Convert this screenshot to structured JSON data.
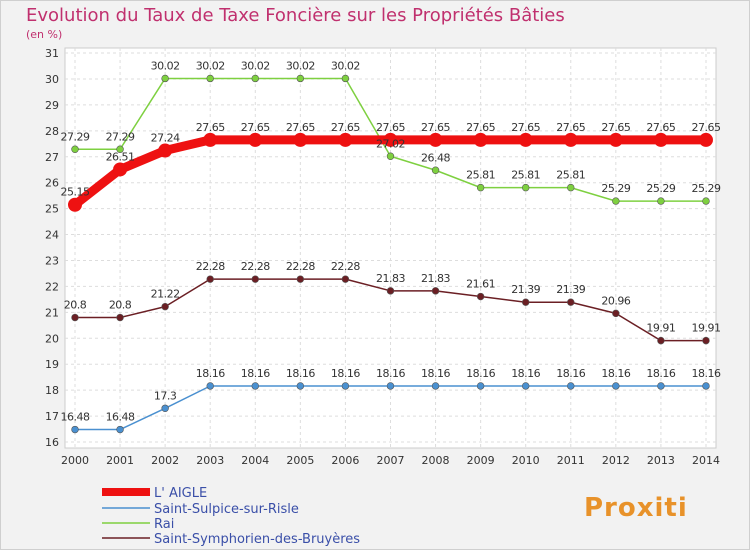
{
  "title": "Evolution du Taux de Taxe Foncière sur les Propriétés Bâties",
  "unit_label": "(en %)",
  "logo_text": "Proxiti",
  "chart_data": {
    "type": "line",
    "title": "Evolution du Taux de Taxe Foncière sur les Propriétés Bâties",
    "ylabel": "(en %)",
    "xlabel": "",
    "ylim": [
      16,
      31
    ],
    "yticks": [
      16,
      17,
      18,
      19,
      20,
      21,
      22,
      23,
      24,
      25,
      26,
      27,
      28,
      29,
      30,
      31
    ],
    "grid": true,
    "legend_position": "bottom-left",
    "x": [
      "2000",
      "2001",
      "2002",
      "2003",
      "2004",
      "2005",
      "2006",
      "2007",
      "2008",
      "2009",
      "2010",
      "2011",
      "2012",
      "2013",
      "2014"
    ],
    "series": [
      {
        "name": "L' AIGLE",
        "color": "#ee1111",
        "values": [
          25.15,
          26.51,
          27.24,
          27.65,
          27.65,
          27.65,
          27.65,
          27.65,
          27.65,
          27.65,
          27.65,
          27.65,
          27.65,
          27.65,
          27.65
        ]
      },
      {
        "name": "Saint-Sulpice-sur-Risle",
        "color": "#4a90d0",
        "values": [
          16.48,
          16.48,
          17.3,
          18.16,
          18.16,
          18.16,
          18.16,
          18.16,
          18.16,
          18.16,
          18.16,
          18.16,
          18.16,
          18.16,
          18.16
        ]
      },
      {
        "name": "Rai",
        "color": "#7ed040",
        "values": [
          27.29,
          27.29,
          30.02,
          30.02,
          30.02,
          30.02,
          30.02,
          27.02,
          26.48,
          25.81,
          25.81,
          25.81,
          25.29,
          25.29,
          25.29
        ]
      },
      {
        "name": "Saint-Symphorien-des-Bruyères",
        "color": "#6b1f24",
        "values": [
          20.8,
          20.8,
          21.22,
          22.28,
          22.28,
          22.28,
          22.28,
          21.83,
          21.83,
          21.61,
          21.39,
          21.39,
          20.96,
          19.91,
          19.91
        ]
      }
    ]
  }
}
